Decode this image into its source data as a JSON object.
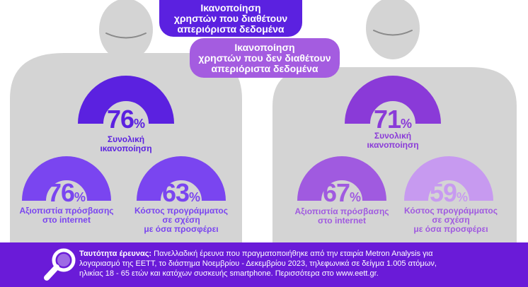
{
  "colors": {
    "panel_bg": "#d4d4d4",
    "head_bg": "#d4d4d4",
    "face_stroke": "#8a8a8a",
    "left_main": "#5b21e0",
    "left_sub": "#7a45f0",
    "right_main": "#8a3ad8",
    "right_sub1": "#a05ae0",
    "right_sub2": "#c79af0",
    "footer_bg": "#6a1bd8",
    "text_left": "#5b21e0",
    "text_right": "#8a3ad8"
  },
  "bubbles": {
    "with_unlimited": "Ικανοποίηση χρηστών που διαθέτουν απεριόριστα δεδομένα",
    "with_unlimited_lines": [
      "Ικανοποίηση",
      "χρηστών που διαθέτουν",
      "απεριόριστα δεδομένα"
    ],
    "without_unlimited_lines": [
      "Ικανοποίηση",
      "χρηστών που δεν διαθέτουν",
      "απεριόριστα δεδομένα"
    ]
  },
  "left": {
    "overall": {
      "value": 76,
      "pct_sign": "%",
      "label_lines": [
        "Συνολική",
        "ικανοποίηση"
      ]
    },
    "access": {
      "value": 76,
      "pct_sign": "%",
      "label_lines": [
        "Αξιοπιστία πρόσβασης",
        "στο internet"
      ]
    },
    "cost": {
      "value": 63,
      "pct_sign": "%",
      "label_lines": [
        "Κόστος προγράμματος",
        "σε σχέση",
        "με όσα προσφέρει"
      ]
    }
  },
  "right": {
    "overall": {
      "value": 71,
      "pct_sign": "%",
      "label_lines": [
        "Συνολική",
        "ικανοποίηση"
      ]
    },
    "access": {
      "value": 67,
      "pct_sign": "%",
      "label_lines": [
        "Αξιοπιστία πρόσβασης",
        "στο internet"
      ]
    },
    "cost": {
      "value": 59,
      "pct_sign": "%",
      "label_lines": [
        "Κόστος προγράμματος",
        "σε σχέση",
        "με όσα προσφέρει"
      ]
    }
  },
  "footer": {
    "icon": "magnifier-icon",
    "title": "Ταυτότητα έρευνας:",
    "line1": " Πανελλαδική έρευνα που πραγματοποιήθηκε από την εταιρία Metron Analysis για",
    "line2": "λογαριασμό της ΕΕΤΤ, το διάστημα Νοεμβρίου - Δεκεμβρίου 2023, τηλεφωνικά σε δείγμα 1.005 ατόμων,",
    "line3": "ηλικίας 18 - 65 ετών και κατόχων συσκευής smartphone. Περισσότερα στο www.eett.gr."
  }
}
